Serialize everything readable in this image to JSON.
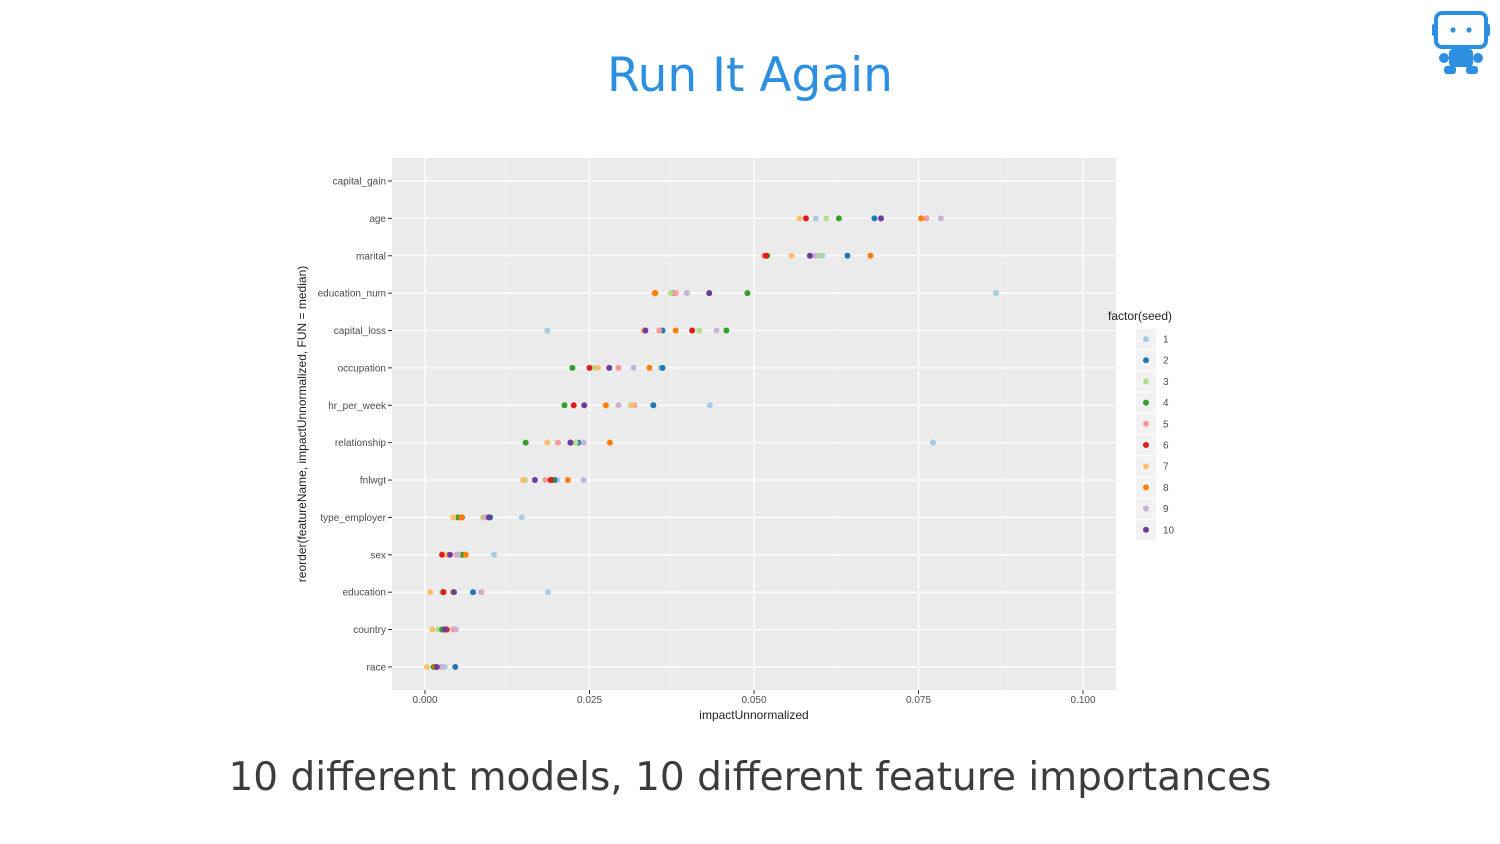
{
  "slide": {
    "title": "Run It Again",
    "caption": "10 different models, 10 different feature importances",
    "logo_icon": "robot-icon",
    "title_color": "#2d8fe0"
  },
  "chart_data": {
    "type": "scatter",
    "xlabel": "impactUnnormalized",
    "ylabel": "reorder(featureName, impactUnnormalized, FUN = median)",
    "xlim": [
      -0.005,
      0.105
    ],
    "xticks": [
      "0.000",
      "0.025",
      "0.050",
      "0.075",
      "0.100"
    ],
    "xtick_values": [
      0,
      0.025,
      0.05,
      0.075,
      0.1
    ],
    "grid": true,
    "legend": {
      "title": "factor(seed)",
      "placement": "right"
    },
    "categories": [
      "capital_gain",
      "age",
      "marital",
      "education_num",
      "capital_loss",
      "occupation",
      "hr_per_week",
      "relationship",
      "fnlwgt",
      "type_employer",
      "sex",
      "education",
      "country",
      "race"
    ],
    "series": [
      {
        "name": "1",
        "color": "#a6cee3",
        "values": [
          null,
          0.0594,
          0.0604,
          0.0868,
          0.0186,
          0.0358,
          0.0433,
          0.0772,
          0.0201,
          0.0147,
          0.0105,
          0.0187,
          0.0028,
          0.003
        ]
      },
      {
        "name": "2",
        "color": "#1f78b4",
        "values": [
          null,
          0.0683,
          0.0642,
          0.0376,
          0.0361,
          0.0361,
          0.0347,
          0.0233,
          0.0197,
          0.0099,
          0.0055,
          0.0073,
          0.0031,
          0.0046
        ]
      },
      {
        "name": "3",
        "color": "#b2df8a",
        "values": [
          null,
          0.061,
          0.0599,
          0.0374,
          0.0417,
          0.0258,
          0.0313,
          0.0229,
          0.0152,
          0.0088,
          0.0053,
          0.0026,
          0.002,
          0.0015
        ]
      },
      {
        "name": "4",
        "color": "#33a02c",
        "values": [
          null,
          0.0629,
          0.052,
          0.049,
          0.0458,
          0.0224,
          0.0212,
          0.0153,
          0.0194,
          0.005,
          0.0057,
          0.0028,
          0.0026,
          0.0013
        ]
      },
      {
        "name": "5",
        "color": "#fb9a99",
        "values": [
          null,
          0.0762,
          0.0515,
          0.0381,
          0.0356,
          0.0294,
          0.0318,
          0.0202,
          0.0183,
          0.0091,
          0.0048,
          0.0086,
          0.0043,
          0.0024
        ]
      },
      {
        "name": "6",
        "color": "#e31a1c",
        "values": [
          null,
          0.0579,
          0.0518,
          0.0349,
          0.0406,
          0.025,
          0.0226,
          0.0221,
          0.0191,
          0.0056,
          0.0026,
          0.0028,
          0.0033,
          0.0016
        ]
      },
      {
        "name": "7",
        "color": "#fdbf6f",
        "values": [
          null,
          0.0569,
          0.0557,
          0.0349,
          0.0332,
          0.0263,
          0.0315,
          0.0186,
          0.0149,
          0.0043,
          0.0034,
          0.0008,
          0.0011,
          0.0003
        ]
      },
      {
        "name": "8",
        "color": "#ff7f00",
        "values": [
          null,
          0.0754,
          0.0677,
          0.035,
          0.0381,
          0.0341,
          0.0275,
          0.0281,
          0.0217,
          0.0055,
          0.0062,
          0.0043,
          0.003,
          0.0016
        ]
      },
      {
        "name": "9",
        "color": "#cab2d6",
        "values": [
          null,
          0.0784,
          0.0593,
          0.0398,
          0.0443,
          0.0317,
          0.0294,
          0.0241,
          0.0241,
          0.0093,
          0.005,
          0.0085,
          0.0047,
          0.0026
        ]
      },
      {
        "name": "10",
        "color": "#6a3d9a",
        "values": [
          null,
          0.0693,
          0.0585,
          0.0432,
          0.0335,
          0.028,
          0.0242,
          0.0221,
          0.0167,
          0.0097,
          0.0038,
          0.0044,
          0.003,
          0.0018
        ]
      }
    ]
  }
}
